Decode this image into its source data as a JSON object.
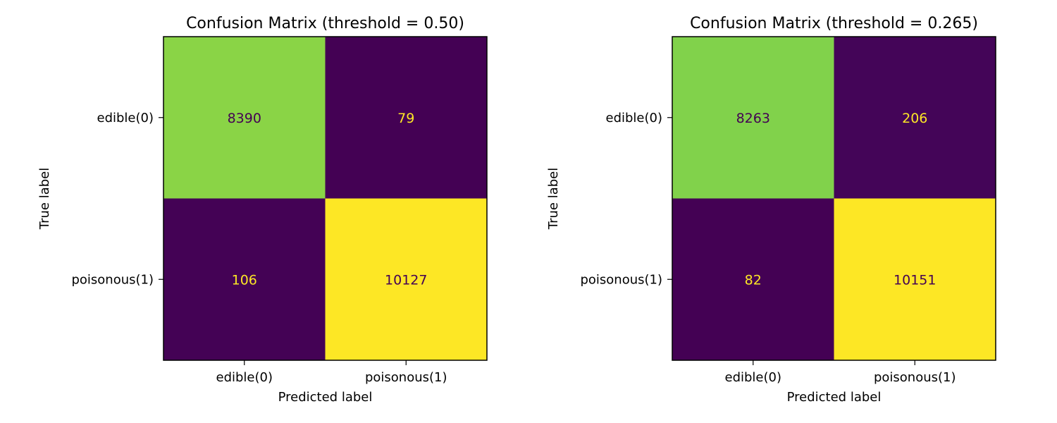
{
  "chart_data": [
    {
      "type": "heatmap",
      "title": "Confusion Matrix (threshold = 0.50)",
      "xlabel": "Predicted label",
      "ylabel": "True label",
      "x_categories": [
        "edible(0)",
        "poisonous(1)"
      ],
      "y_categories": [
        "edible(0)",
        "poisonous(1)"
      ],
      "values": [
        [
          8390,
          79
        ],
        [
          106,
          10127
        ]
      ],
      "colormap": "viridis",
      "colorbar": false,
      "grid": false
    },
    {
      "type": "heatmap",
      "title": "Confusion Matrix (threshold = 0.265)",
      "xlabel": "Predicted label",
      "ylabel": "True label",
      "x_categories": [
        "edible(0)",
        "poisonous(1)"
      ],
      "y_categories": [
        "edible(0)",
        "poisonous(1)"
      ],
      "values": [
        [
          8263,
          206
        ],
        [
          82,
          10151
        ]
      ],
      "colormap": "viridis",
      "colorbar": false,
      "grid": false
    }
  ],
  "colors": {
    "viridis_low": "#440154",
    "viridis_high": "#fde725",
    "text_on_dark": "#fde725",
    "text_on_light": "#440154",
    "frame": "#000000"
  }
}
